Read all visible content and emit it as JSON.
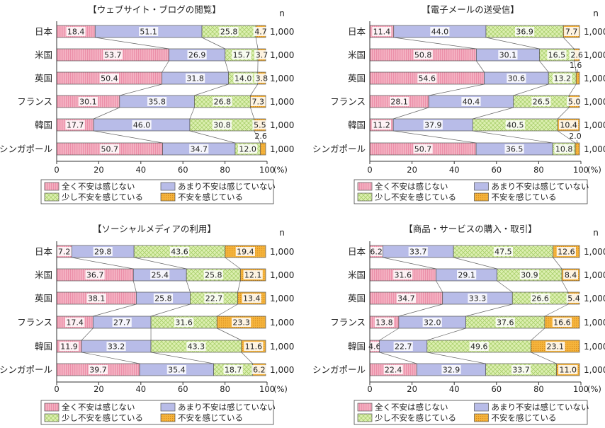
{
  "chart_data": [
    {
      "type": "bar",
      "stacked": true,
      "orientation": "horizontal",
      "title": "【ウェブサイト・ブログの閲覧】",
      "categories": [
        "日本",
        "米国",
        "英国",
        "フランス",
        "韓国",
        "シンガポール"
      ],
      "series": [
        {
          "name": "全く不安は感じない",
          "values": [
            18.4,
            53.7,
            50.4,
            30.1,
            17.7,
            50.7
          ]
        },
        {
          "name": "あまり不安は感じていない",
          "values": [
            51.1,
            26.9,
            31.8,
            35.8,
            46.0,
            34.7
          ]
        },
        {
          "name": "少し不安を感じている",
          "values": [
            25.8,
            15.7,
            14.0,
            26.8,
            30.8,
            12.0
          ]
        },
        {
          "name": "不安を感じている",
          "values": [
            4.7,
            3.7,
            3.8,
            7.3,
            5.5,
            2.6
          ]
        }
      ],
      "value_labels": [
        [
          "18.4",
          "51.1",
          "25.8",
          "4.7"
        ],
        [
          "53.7",
          "26.9",
          "15.7",
          "3.7"
        ],
        [
          "50.4",
          "31.8",
          "14.0",
          "3.8"
        ],
        [
          "30.1",
          "35.8",
          "26.8",
          "7.3"
        ],
        [
          "17.7",
          "46.0",
          "30.8",
          "5.5"
        ],
        [
          "50.7",
          "34.7",
          "12.0",
          ""
        ]
      ],
      "outside_labels": [
        {
          "row": 5,
          "text": "2.6"
        }
      ],
      "n_header": "n",
      "n_values": [
        "1,000",
        "1,000",
        "1,000",
        "1,000",
        "1,000",
        "1,000"
      ],
      "xlim": [
        0,
        100
      ],
      "xticks": [
        "0",
        "20",
        "40",
        "60",
        "80",
        "100"
      ],
      "xunit": "(%)"
    },
    {
      "type": "bar",
      "stacked": true,
      "orientation": "horizontal",
      "title": "【電子メールの送受信】",
      "categories": [
        "日本",
        "米国",
        "英国",
        "フランス",
        "韓国",
        "シンガポール"
      ],
      "series": [
        {
          "name": "全く不安は感じない",
          "values": [
            11.4,
            50.8,
            54.6,
            28.1,
            11.2,
            50.7
          ]
        },
        {
          "name": "あまり不安は感じていない",
          "values": [
            44.0,
            30.1,
            30.6,
            40.4,
            37.9,
            36.5
          ]
        },
        {
          "name": "少し不安を感じている",
          "values": [
            36.9,
            16.5,
            13.2,
            26.5,
            40.5,
            10.8
          ]
        },
        {
          "name": "不安を感じている",
          "values": [
            7.7,
            2.6,
            1.6,
            5.0,
            10.4,
            2.0
          ]
        }
      ],
      "value_labels": [
        [
          "11.4",
          "44.0",
          "36.9",
          "7.7"
        ],
        [
          "50.8",
          "30.1",
          "16.5",
          "2.6"
        ],
        [
          "54.6",
          "30.6",
          "13.2",
          ""
        ],
        [
          "28.1",
          "40.4",
          "26.5",
          "5.0"
        ],
        [
          "11.2",
          "37.9",
          "40.5",
          "10.4"
        ],
        [
          "50.7",
          "36.5",
          "10.8",
          ""
        ]
      ],
      "outside_labels": [
        {
          "row": 2,
          "text": "1.6"
        },
        {
          "row": 5,
          "text": "2.0"
        }
      ],
      "n_header": "n",
      "n_values": [
        "1,000",
        "1,000",
        "1,000",
        "1,000",
        "1,000",
        "1,000"
      ],
      "xlim": [
        0,
        100
      ],
      "xticks": [
        "0",
        "20",
        "40",
        "60",
        "80",
        "100"
      ],
      "xunit": "(%)"
    },
    {
      "type": "bar",
      "stacked": true,
      "orientation": "horizontal",
      "title": "【ソーシャルメディアの利用】",
      "categories": [
        "日本",
        "米国",
        "英国",
        "フランス",
        "韓国",
        "シンガポール"
      ],
      "series": [
        {
          "name": "全く不安は感じない",
          "values": [
            7.2,
            36.7,
            38.1,
            17.4,
            11.9,
            39.7
          ]
        },
        {
          "name": "あまり不安は感じていない",
          "values": [
            29.8,
            25.4,
            25.8,
            27.7,
            33.2,
            35.4
          ]
        },
        {
          "name": "少し不安を感じている",
          "values": [
            43.6,
            25.8,
            22.7,
            31.6,
            43.3,
            18.7
          ]
        },
        {
          "name": "不安を感じている",
          "values": [
            19.4,
            12.1,
            13.4,
            23.3,
            11.6,
            6.2
          ]
        }
      ],
      "value_labels": [
        [
          "7.2",
          "29.8",
          "43.6",
          "19.4"
        ],
        [
          "36.7",
          "25.4",
          "25.8",
          "12.1"
        ],
        [
          "38.1",
          "25.8",
          "22.7",
          "13.4"
        ],
        [
          "17.4",
          "27.7",
          "31.6",
          "23.3"
        ],
        [
          "11.9",
          "33.2",
          "43.3",
          "11.6"
        ],
        [
          "39.7",
          "35.4",
          "18.7",
          "6.2"
        ]
      ],
      "outside_labels": [],
      "n_header": "n",
      "n_values": [
        "1,000",
        "1,000",
        "1,000",
        "1,000",
        "1,000",
        "1,000"
      ],
      "xlim": [
        0,
        100
      ],
      "xticks": [
        "0",
        "20",
        "40",
        "60",
        "80",
        "100"
      ],
      "xunit": "(%)"
    },
    {
      "type": "bar",
      "stacked": true,
      "orientation": "horizontal",
      "title": "【商品・サービスの購入・取引】",
      "categories": [
        "日本",
        "米国",
        "英国",
        "フランス",
        "韓国",
        "シンガポール"
      ],
      "series": [
        {
          "name": "全く不安は感じない",
          "values": [
            6.2,
            31.6,
            34.7,
            13.8,
            4.6,
            22.4
          ]
        },
        {
          "name": "あまり不安は感じていない",
          "values": [
            33.7,
            29.1,
            33.3,
            32.0,
            22.7,
            32.9
          ]
        },
        {
          "name": "少し不安を感じている",
          "values": [
            47.5,
            30.9,
            26.6,
            37.6,
            49.6,
            33.7
          ]
        },
        {
          "name": "不安を感じている",
          "values": [
            12.6,
            8.4,
            5.4,
            16.6,
            23.1,
            11.0
          ]
        }
      ],
      "value_labels": [
        [
          "6.2",
          "33.7",
          "47.5",
          "12.6"
        ],
        [
          "31.6",
          "29.1",
          "30.9",
          "8.4"
        ],
        [
          "34.7",
          "33.3",
          "26.6",
          "5.4"
        ],
        [
          "13.8",
          "32.0",
          "37.6",
          "16.6"
        ],
        [
          "4.6",
          "22.7",
          "49.6",
          "23.1"
        ],
        [
          "22.4",
          "32.9",
          "33.7",
          "11.0"
        ]
      ],
      "outside_labels": [],
      "n_header": "n",
      "n_values": [
        "1,000",
        "1,000",
        "1,000",
        "1,000",
        "1,000",
        "1,000"
      ],
      "xlim": [
        0,
        100
      ],
      "xticks": [
        "0",
        "20",
        "40",
        "60",
        "80",
        "100"
      ],
      "xunit": "(%)"
    }
  ],
  "legend": {
    "placement": "bottom",
    "items": [
      "全く不安は感じない",
      "あまり不安は感じていない",
      "少し不安を感じている",
      "不安を感じている"
    ]
  },
  "colors": {
    "series_fill": [
      "#f4b4c4",
      "#b8bce8",
      "#d4eba0",
      "#f5b43c"
    ],
    "series_pattern": [
      "#e87898",
      "#8c92d2",
      "#a2ca62",
      "#d78a1a"
    ],
    "outline": "#555555",
    "text": "#222222",
    "axis": "#333333"
  }
}
